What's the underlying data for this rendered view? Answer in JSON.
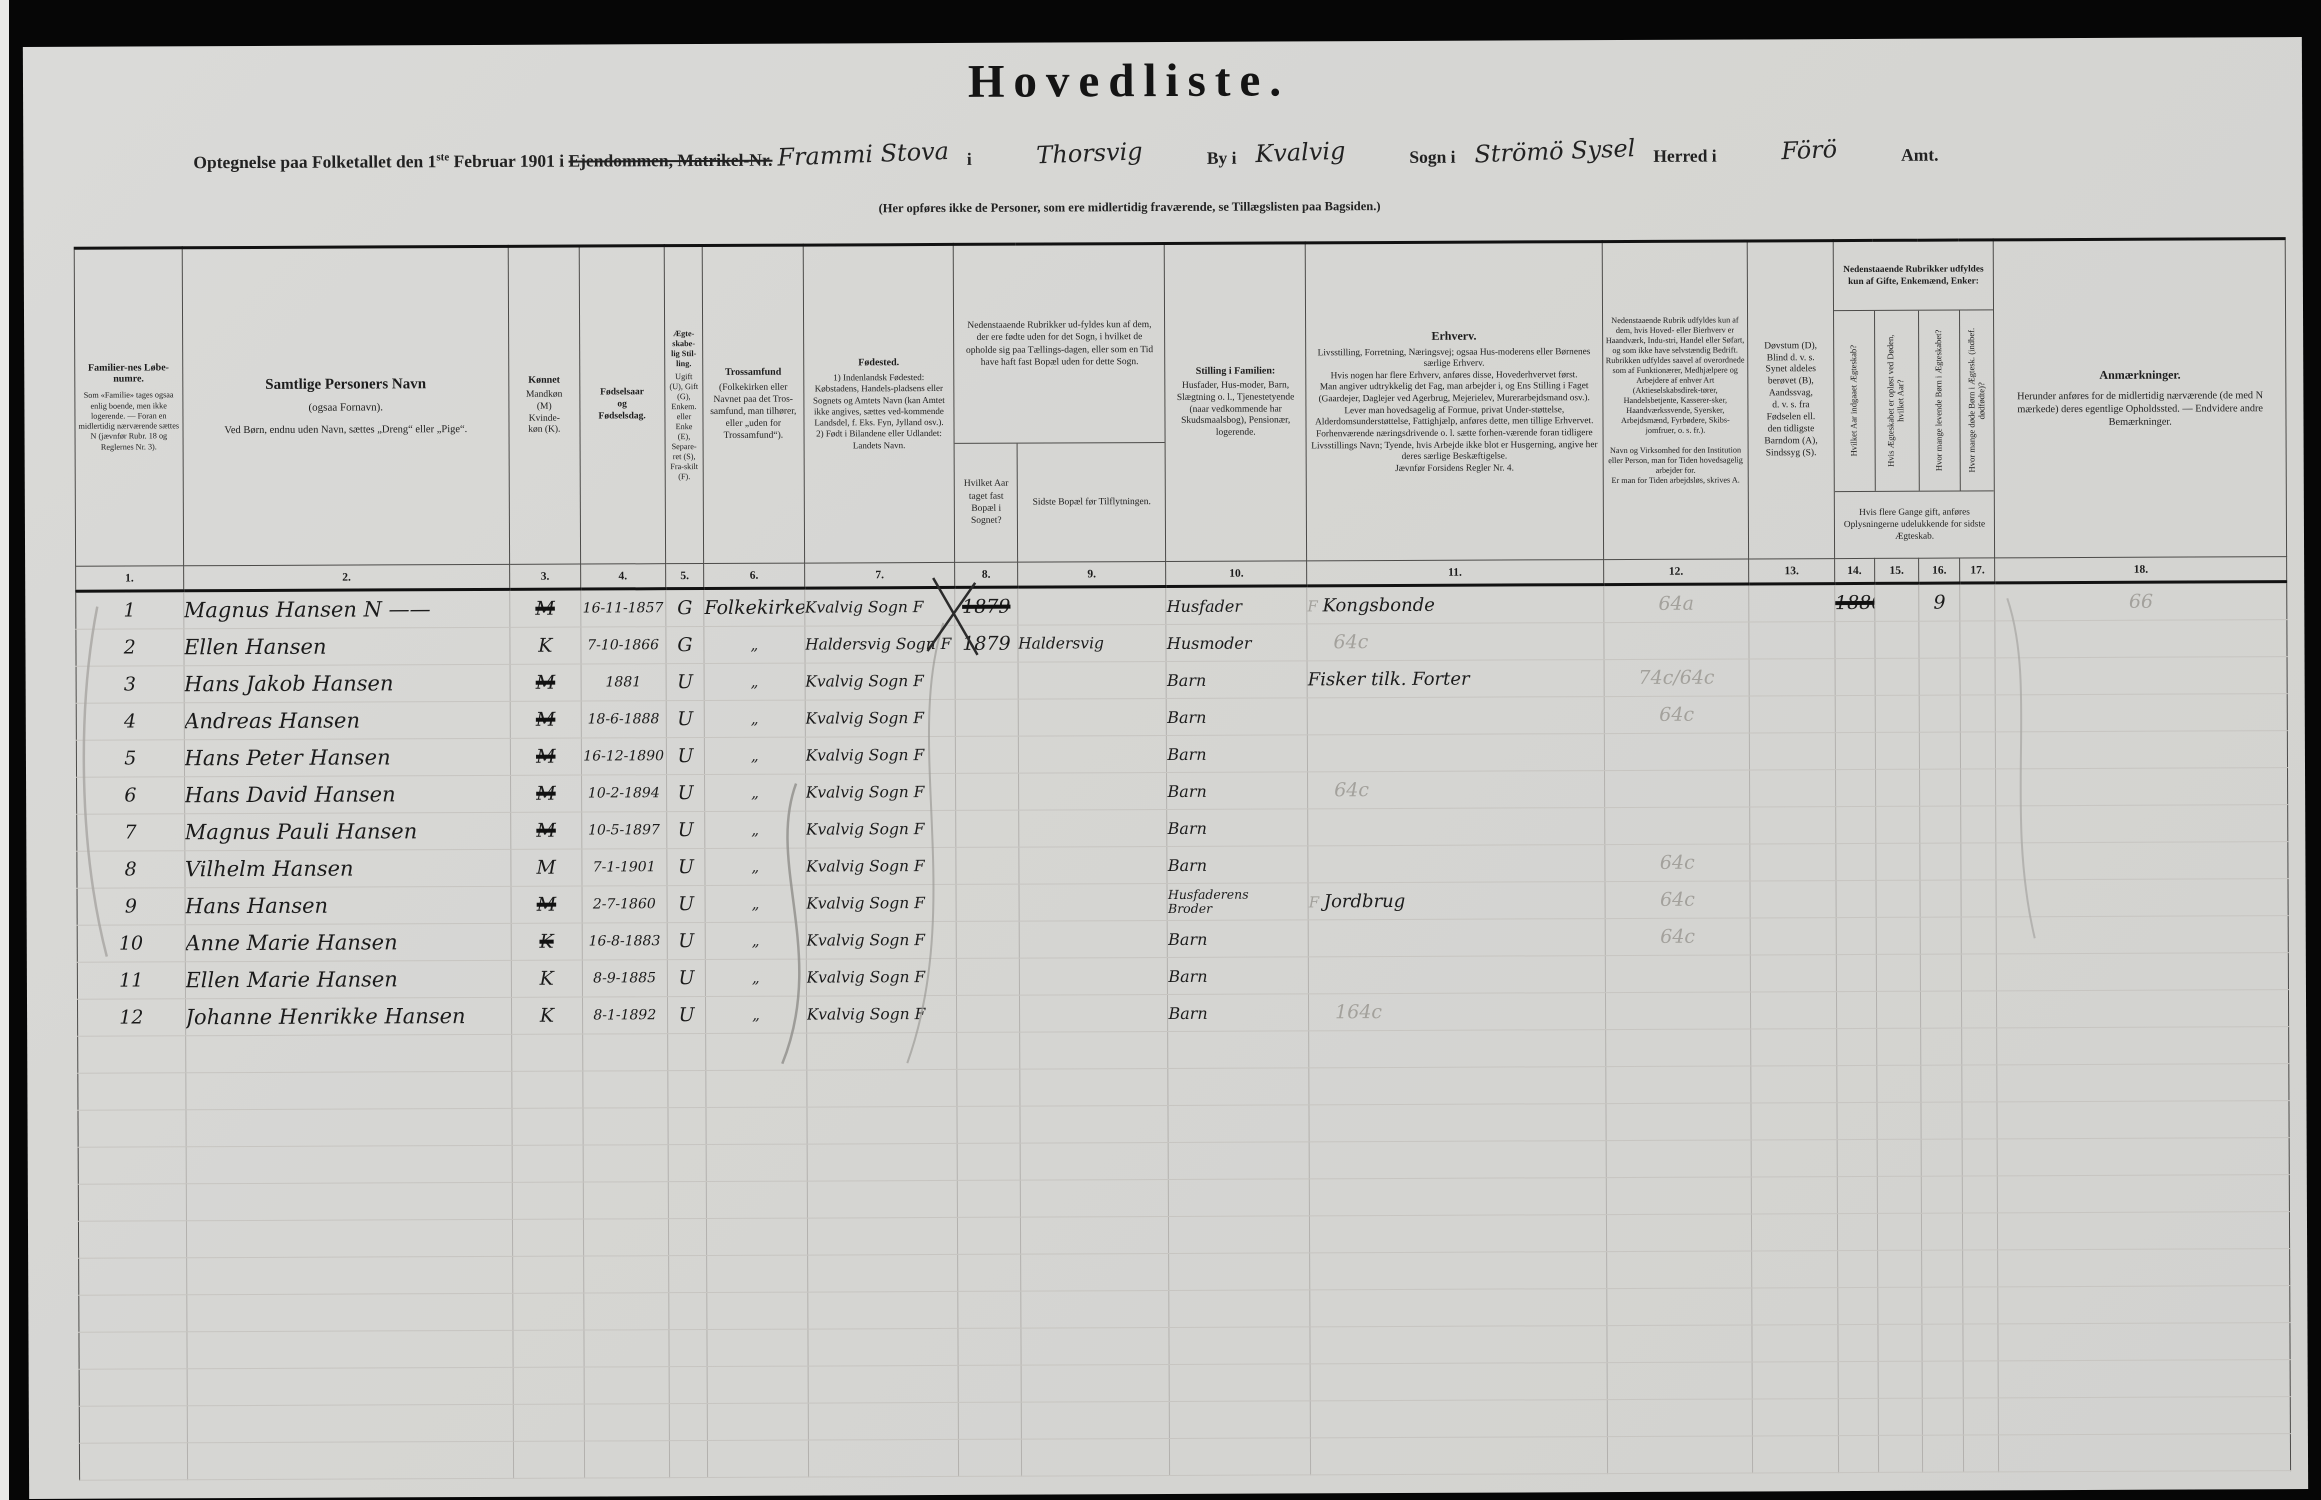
{
  "doc": {
    "title": "Hovedliste.",
    "subtitle": {
      "prefix": "Optegnelse paa Folketallet den 1",
      "sup": "ste",
      "mid": " Februar 1901 i ",
      "struck": "Ejendommen, Matrikel-Nr.",
      "hw_matrikel": "Frammi Stova",
      "i_label": "i",
      "hw_place": "Thorsvig",
      "by_label": "By i",
      "hw_by": "Kvalvig",
      "sogn_label": "Sogn i",
      "hw_sogn": "Strömö Sysel",
      "herred_label": "Herred i",
      "hw_herred": "Förö",
      "amt_label": "Amt."
    },
    "note": "(Her opføres ikke de Personer, som ere midlertidig fraværende, se Tillægslisten paa Bagsiden.)"
  },
  "table": {
    "header": {
      "c1_title": "Familier-nes Løbe-numre.",
      "c1_note": "Som «Familie» tages ogsaa enlig boende, men ikke logerende. — Foran en midlertidig nærværende sættes N (jævnfør Rubr. 18 og Reglernes Nr. 3).",
      "c2_title": "Samtlige Personers Navn",
      "c2_sub1": "(ogsaa Fornavn).",
      "c2_sub2": "Ved Børn, endnu uden Navn, sættes „Dreng“ eller „Pige“.",
      "c3_title": "Kønnet",
      "c3_body": "Mandkøn\n(M)\nKvinde-\nkøn (K).",
      "c4": "Fødselsaar\nog\nFødselsdag.",
      "c5_title": "Ægte-skabe-lig Stil-ling.",
      "c5_body": "Ugift (U), Gift (G), Enkem. eller Enke (E), Separe-ret (S), Fra-skilt (F).",
      "c6_title": "Trossamfund",
      "c6_body": "(Folkekirken eller Navnet paa det Tros-samfund, man tilhører, eller „uden for Trossamfund“).",
      "c7_title": "Fødested.",
      "c7_body": "1) Indenlandsk Fødested:\nKøbstadens, Handels-pladsens eller Sognets og Amtets Navn (kan Amtet ikke angives, sættes ved-kommende Landsdel, f. Eks. Fyn, Jylland osv.).\n2) Født i Bilandene eller Udlandet:\nLandets Navn.",
      "c8_9_note": "Nedenstaaende Rubrikker ud-fyldes kun af dem, der ere fødte uden for det Sogn, i hvilket de opholde sig paa Tællings-dagen, eller som en Tid have haft fast Bopæl uden for dette Sogn.",
      "c8": "Hvilket Aar taget fast Bopæl i Sognet?",
      "c9": "Sidste Bopæl før Tilflytningen.",
      "c10_title": "Stilling i Familien:",
      "c10_body": "Husfader, Hus-moder, Barn, Slægtning o. l., Tjenestetyende (naar vedkommende har Skudsmaalsbog), Pensionær, logerende.",
      "c11_title": "Erhverv.",
      "c11_body": "Livsstilling, Forretning, Næringsvej; ogsaa Hus-moderens eller Børnenes særlige Erhverv.\nHvis nogen har flere Erhverv, anføres disse, Hovederhvervet først.\nMan angiver udtrykkelig det Fag, man arbejder i, og Ens Stilling i Faget (Gaardejer, Daglejer ved Agerbrug, Mejerielev, Murerarbejdsmand osv.).\nLever man hovedsagelig af Formue, privat Under-støttelse, Alderdomsunderstøttelse, Fattighjælp, anføres dette, men tillige Erhvervet.\nForhenværende næringsdrivende o. l. sætte forhen-værende foran tidligere Livsstillings Navn; Tyende, hvis Arbejde ikke blot er Husgerning, angive her deres særlige Beskæftigelse.\nJævnfør Forsidens Regler Nr. 4.",
      "c12": "Nedenstaaende Rubrik udfyldes kun af dem, hvis Hoved- eller Bierhverv er Haandværk, Indu-stri, Handel eller Søfart, og som ikke have selvstændig Bedrift.\nRubrikken udfyldes saavel af overordnede som af Funktionærer, Medhjælpere og Arbejdere af enhver Art (Aktieselskabsdirek-tører, Handelsbetjente, Kasserer-sker, Haandværkssvende, Syersker, Arbejdsmænd, Fyrbødere, Skibs-jomfruer, o. s. fr.).\n\nNavn og Virksomhed for den Institution eller Person, man for Tiden hovedsagelig arbejder for.\nEr man for Tiden arbejdsløs, skrives A.",
      "c13": "Døvstum (D),\nBlind d. v. s.\nSynet aldeles\nberøvet (B),\nAandssvag,\nd. v. s. fra\nFødselen ell.\nden tidligste\nBarndom (A),\nSindssyg (S).",
      "c14_17_top": "Nedenstaaende Rubrikker udfyldes kun af Gifte, Enkemænd, Enker:",
      "c14": "Hvilket Aar indgaaet Ægteskab?",
      "c15": "Hvis Ægteskabet er opløst ved Døden, hvilket Aar?",
      "c16": "Hvor mange levende Børn i Ægteskabet?",
      "c17": "Hvor mange døde Børn i Ægtesk. (indbef. dødfødte)?",
      "c14_17_bottom": "Hvis flere Gange gift, anføres Oplysningerne udelukkende for sidste Ægteskab.",
      "c18_title": "Anmærkninger.",
      "c18_body": "Herunder anføres for de midlertidig nærværende (de med N mærkede) deres egentlige Opholdssted. — Endvidere andre Bemærkninger."
    },
    "col_numbers": [
      "1.",
      "2.",
      "3.",
      "4.",
      "5.",
      "6.",
      "7.",
      "8.",
      "9.",
      "10.",
      "11.",
      "12.",
      "13.",
      "14.",
      "15.",
      "16.",
      "17.",
      "18."
    ],
    "rows": [
      {
        "nr": "1",
        "name": "Magnus Hansen N ——",
        "sex": "M",
        "sex_struck": true,
        "born": "16-11-1857",
        "status": "G",
        "faith": "Folkekirken",
        "birthplace": "Kvalvig Sogn F",
        "year_settled": "1879",
        "year_settled_struck": true,
        "prev_residence": "",
        "family_position": "Husfader",
        "occupation_pencil_prefix": "F",
        "occupation": "Kongsbonde",
        "institution_pencil": "64a",
        "marriage_year": "1880",
        "marriage_year_struck": true,
        "children_alive": "9",
        "remarks_pencil": "66"
      },
      {
        "nr": "2",
        "name": "Ellen Hansen",
        "sex": "K",
        "sex_struck": false,
        "born": "7-10-1866",
        "status": "G",
        "faith": "„",
        "birthplace": "Haldersvig Sogn F",
        "year_settled": "1879",
        "year_settled_struck": false,
        "prev_residence": "Haldersvig",
        "family_position": "Husmoder",
        "occupation": "",
        "occupation_pencil": "64c",
        "marriage_year": "",
        "children_alive": ""
      },
      {
        "nr": "3",
        "name": "Hans Jakob Hansen",
        "sex": "M",
        "sex_struck": true,
        "born": "1881",
        "status": "U",
        "faith": "„",
        "birthplace": "Kvalvig Sogn F",
        "year_settled": "",
        "prev_residence": "",
        "family_position": "Barn",
        "occupation": "Fisker tilk. Forter",
        "institution_pencil": "74c/64c",
        "marriage_year": "",
        "children_alive": ""
      },
      {
        "nr": "4",
        "name": "Andreas Hansen",
        "sex": "M",
        "sex_struck": true,
        "born": "18-6-1888",
        "status": "U",
        "faith": "„",
        "birthplace": "Kvalvig Sogn F",
        "year_settled": "",
        "prev_residence": "",
        "family_position": "Barn",
        "occupation": "",
        "institution_pencil": "64c",
        "marriage_year": "",
        "children_alive": ""
      },
      {
        "nr": "5",
        "name": "Hans Peter Hansen",
        "sex": "M",
        "sex_struck": true,
        "born": "16-12-1890",
        "status": "U",
        "faith": "„",
        "birthplace": "Kvalvig Sogn F",
        "year_settled": "",
        "prev_residence": "",
        "family_position": "Barn",
        "occupation": "",
        "marriage_year": "",
        "children_alive": ""
      },
      {
        "nr": "6",
        "name": "Hans David Hansen",
        "sex": "M",
        "sex_struck": true,
        "born": "10-2-1894",
        "status": "U",
        "faith": "„",
        "birthplace": "Kvalvig Sogn F",
        "year_settled": "",
        "prev_residence": "",
        "family_position": "Barn",
        "occupation": "",
        "occupation_pencil": "64c",
        "marriage_year": "",
        "children_alive": ""
      },
      {
        "nr": "7",
        "name": "Magnus Pauli Hansen",
        "sex": "M",
        "sex_struck": true,
        "born": "10-5-1897",
        "status": "U",
        "faith": "„",
        "birthplace": "Kvalvig Sogn F",
        "year_settled": "",
        "prev_residence": "",
        "family_position": "Barn",
        "occupation": "",
        "marriage_year": "",
        "children_alive": ""
      },
      {
        "nr": "8",
        "name": "Vilhelm Hansen",
        "sex": "M",
        "sex_struck": false,
        "born": "7-1-1901",
        "status": "U",
        "faith": "„",
        "birthplace": "Kvalvig Sogn F",
        "year_settled": "",
        "prev_residence": "",
        "family_position": "Barn",
        "occupation": "",
        "institution_pencil": "64c",
        "marriage_year": "",
        "children_alive": ""
      },
      {
        "nr": "9",
        "name": "Hans Hansen",
        "sex": "M",
        "sex_struck": true,
        "born": "2-7-1860",
        "status": "U",
        "faith": "„",
        "birthplace": "Kvalvig Sogn F",
        "year_settled": "",
        "prev_residence": "",
        "family_position": "Husfaderens\nBroder",
        "occupation_pencil_prefix": "F",
        "occupation": "Jordbrug",
        "institution_pencil": "64c",
        "marriage_year": "",
        "children_alive": ""
      },
      {
        "nr": "10",
        "name": "Anne Marie Hansen",
        "sex": "K",
        "sex_struck": true,
        "born": "16-8-1883",
        "status": "U",
        "faith": "„",
        "birthplace": "Kvalvig Sogn F",
        "year_settled": "",
        "prev_residence": "",
        "family_position": "Barn",
        "occupation": "",
        "institution_pencil": "64c",
        "marriage_year": "",
        "children_alive": ""
      },
      {
        "nr": "11",
        "name": "Ellen Marie Hansen",
        "sex": "K",
        "sex_struck": false,
        "born": "8-9-1885",
        "status": "U",
        "faith": "„",
        "birthplace": "Kvalvig Sogn F",
        "year_settled": "",
        "prev_residence": "",
        "family_position": "Barn",
        "occupation": "",
        "marriage_year": "",
        "children_alive": ""
      },
      {
        "nr": "12",
        "name": "Johanne Henrikke Hansen",
        "sex": "K",
        "sex_struck": false,
        "born": "8-1-1892",
        "status": "U",
        "faith": "„",
        "birthplace": "Kvalvig Sogn F",
        "year_settled": "",
        "prev_residence": "",
        "family_position": "Barn",
        "occupation": "",
        "occupation_pencil": "164c",
        "marriage_year": "",
        "children_alive": ""
      }
    ],
    "empty_row_count": 12
  }
}
